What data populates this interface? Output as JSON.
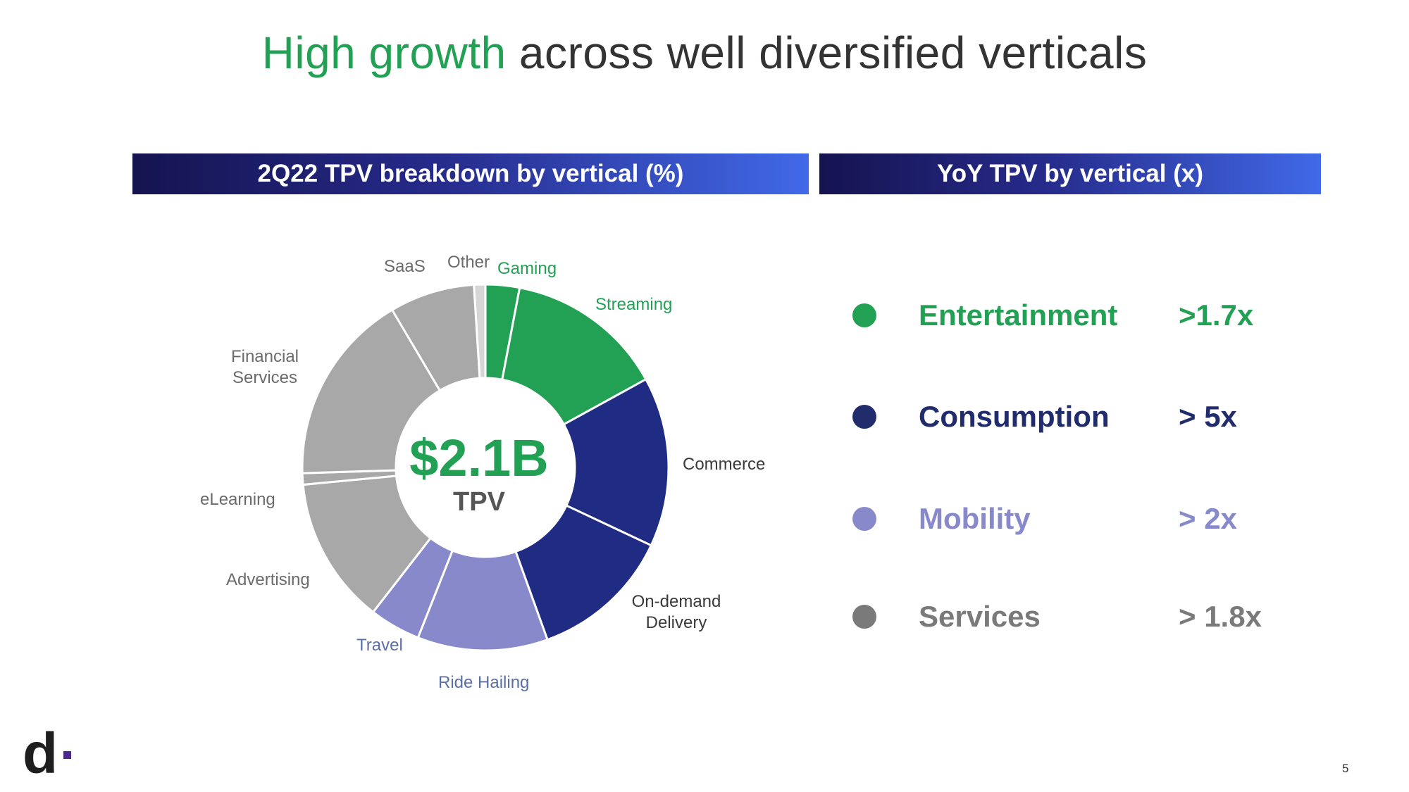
{
  "title": {
    "highlight": "High growth",
    "rest": " across well diversified verticals"
  },
  "left_header": "2Q22 TPV breakdown by vertical (%)",
  "right_header": "YoY TPV by vertical (x)",
  "donut_center": {
    "value": "$2.1B",
    "label": "TPV"
  },
  "colors": {
    "entertainment": "#22a155",
    "consumption": "#202c84",
    "mobility": "#8789cb",
    "services": "#a8a8a8",
    "other": "#d6d6d6",
    "services_legend": "#7a7a7a"
  },
  "chart_data": {
    "type": "pie",
    "title": "2Q22 TPV breakdown by vertical (%)",
    "total": "$2.1B",
    "slices": [
      {
        "name": "Gaming",
        "value": 3,
        "group": "entertainment"
      },
      {
        "name": "Streaming",
        "value": 14,
        "group": "entertainment"
      },
      {
        "name": "Commerce",
        "value": 15,
        "group": "consumption"
      },
      {
        "name": "On-demand Delivery",
        "value": 12.5,
        "group": "consumption"
      },
      {
        "name": "Ride Hailing",
        "value": 11.5,
        "group": "mobility"
      },
      {
        "name": "Travel",
        "value": 4.5,
        "group": "mobility"
      },
      {
        "name": "Advertising",
        "value": 13,
        "group": "services"
      },
      {
        "name": "eLearning",
        "value": 1,
        "group": "services"
      },
      {
        "name": "Financial Services",
        "value": 17,
        "group": "services"
      },
      {
        "name": "SaaS",
        "value": 7.5,
        "group": "services"
      },
      {
        "name": "Other",
        "value": 1,
        "group": "other"
      }
    ],
    "labels": [
      {
        "lines": [
          "Gaming"
        ],
        "group": "ent"
      },
      {
        "lines": [
          "Streaming"
        ],
        "group": "ent"
      },
      {
        "lines": [
          "Commerce"
        ],
        "group": "con"
      },
      {
        "lines": [
          "On-demand",
          "Delivery"
        ],
        "group": "con"
      },
      {
        "lines": [
          "Ride Hailing"
        ],
        "group": "mob"
      },
      {
        "lines": [
          "Travel"
        ],
        "group": "mob"
      },
      {
        "lines": [
          "Advertising"
        ],
        "group": "srv"
      },
      {
        "lines": [
          "eLearning"
        ],
        "group": "srv"
      },
      {
        "lines": [
          "Financial",
          "Services"
        ],
        "group": "srv"
      },
      {
        "lines": [
          "SaaS"
        ],
        "group": "srv"
      },
      {
        "lines": [
          "Other"
        ],
        "group": "srv"
      }
    ]
  },
  "legend": [
    {
      "name": "Entertainment",
      "growth": ">1.7x",
      "color": "#22a155"
    },
    {
      "name": "Consumption",
      "growth": "> 5x",
      "color": "#202c6b"
    },
    {
      "name": "Mobility",
      "growth": "> 2x",
      "color": "#8789cb"
    },
    {
      "name": "Services",
      "growth": "> 1.8x",
      "color": "#7a7a7a"
    }
  ],
  "logo": "d",
  "page_number": "5"
}
